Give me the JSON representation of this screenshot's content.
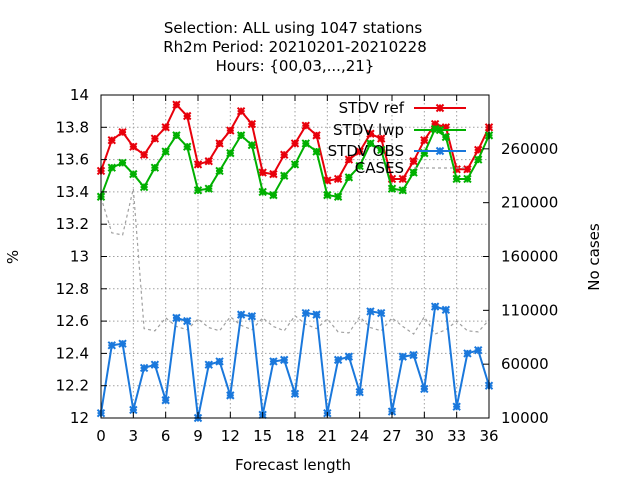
{
  "title_lines": [
    "Selection: ALL using  1047 stations",
    "Rh2m   Period: 20210201-20210228",
    "Hours: {00,03,...,21}"
  ],
  "chart_data": {
    "type": "line",
    "xlabel": "Forecast length",
    "ylabel": "%",
    "y2label": "No cases",
    "xlim": [
      0,
      36
    ],
    "ylim": [
      12,
      14
    ],
    "y2lim": [
      10000,
      310000
    ],
    "x_ticks": [
      "0",
      "3",
      "6",
      "9",
      "12",
      "15",
      "18",
      "21",
      "24",
      "27",
      "30",
      "33",
      "36"
    ],
    "y_ticks": [
      "12",
      "12.2",
      "12.4",
      "12.6",
      "12.8",
      "13",
      "13.2",
      "13.4",
      "13.6",
      "13.8",
      "14"
    ],
    "y2_ticks": [
      "10000",
      "60000",
      "110000",
      "160000",
      "210000",
      "260000"
    ],
    "grid": true,
    "legend_position": "top-right",
    "x": [
      0,
      1,
      2,
      3,
      4,
      5,
      6,
      7,
      8,
      9,
      10,
      11,
      12,
      13,
      14,
      15,
      16,
      17,
      18,
      19,
      20,
      21,
      22,
      23,
      24,
      25,
      26,
      27,
      28,
      29,
      30,
      31,
      32,
      33,
      34,
      35,
      36
    ],
    "series": [
      {
        "name": "STDV ref",
        "color": "#e8000b",
        "marker": "x",
        "axis": "y",
        "values": [
          13.53,
          13.72,
          13.77,
          13.68,
          13.63,
          13.73,
          13.8,
          13.94,
          13.87,
          13.57,
          13.59,
          13.7,
          13.78,
          13.9,
          13.82,
          13.52,
          13.51,
          13.63,
          13.7,
          13.81,
          13.75,
          13.47,
          13.48,
          13.6,
          13.65,
          13.76,
          13.73,
          13.48,
          13.48,
          13.59,
          13.72,
          13.82,
          13.8,
          13.54,
          13.54,
          13.66,
          13.8
        ]
      },
      {
        "name": "STDV lwp",
        "color": "#00b000",
        "marker": "x",
        "axis": "y",
        "values": [
          13.37,
          13.55,
          13.58,
          13.51,
          13.43,
          13.55,
          13.65,
          13.75,
          13.68,
          13.41,
          13.42,
          13.53,
          13.64,
          13.75,
          13.69,
          13.4,
          13.38,
          13.5,
          13.57,
          13.7,
          13.65,
          13.38,
          13.37,
          13.49,
          13.56,
          13.7,
          13.66,
          13.42,
          13.41,
          13.52,
          13.64,
          13.79,
          13.74,
          13.48,
          13.48,
          13.6,
          13.75
        ]
      },
      {
        "name": "STDV OBS",
        "color": "#1a78dc",
        "marker": "x",
        "axis": "y",
        "values": [
          12.03,
          12.45,
          12.46,
          12.05,
          12.31,
          12.33,
          12.11,
          12.62,
          12.6,
          12.0,
          12.33,
          12.35,
          12.14,
          12.64,
          12.63,
          12.02,
          12.35,
          12.36,
          12.15,
          12.65,
          12.64,
          12.03,
          12.36,
          12.38,
          12.16,
          12.66,
          12.65,
          12.04,
          12.38,
          12.39,
          12.18,
          12.69,
          12.67,
          12.07,
          12.4,
          12.42,
          12.2
        ]
      },
      {
        "name": "CASES",
        "color": "#a0a0a0",
        "marker": "none",
        "dashed": true,
        "axis": "y2",
        "values": [
          215000,
          182000,
          180000,
          223000,
          93000,
          91000,
          103000,
          95000,
          92000,
          102000,
          94000,
          91000,
          104000,
          96000,
          92000,
          103000,
          95000,
          91000,
          105000,
          97000,
          93000,
          102000,
          90000,
          89000,
          104000,
          94000,
          91000,
          103000,
          95000,
          88000,
          104000,
          88000,
          92000,
          100000,
          91000,
          90000,
          101000
        ]
      }
    ]
  }
}
